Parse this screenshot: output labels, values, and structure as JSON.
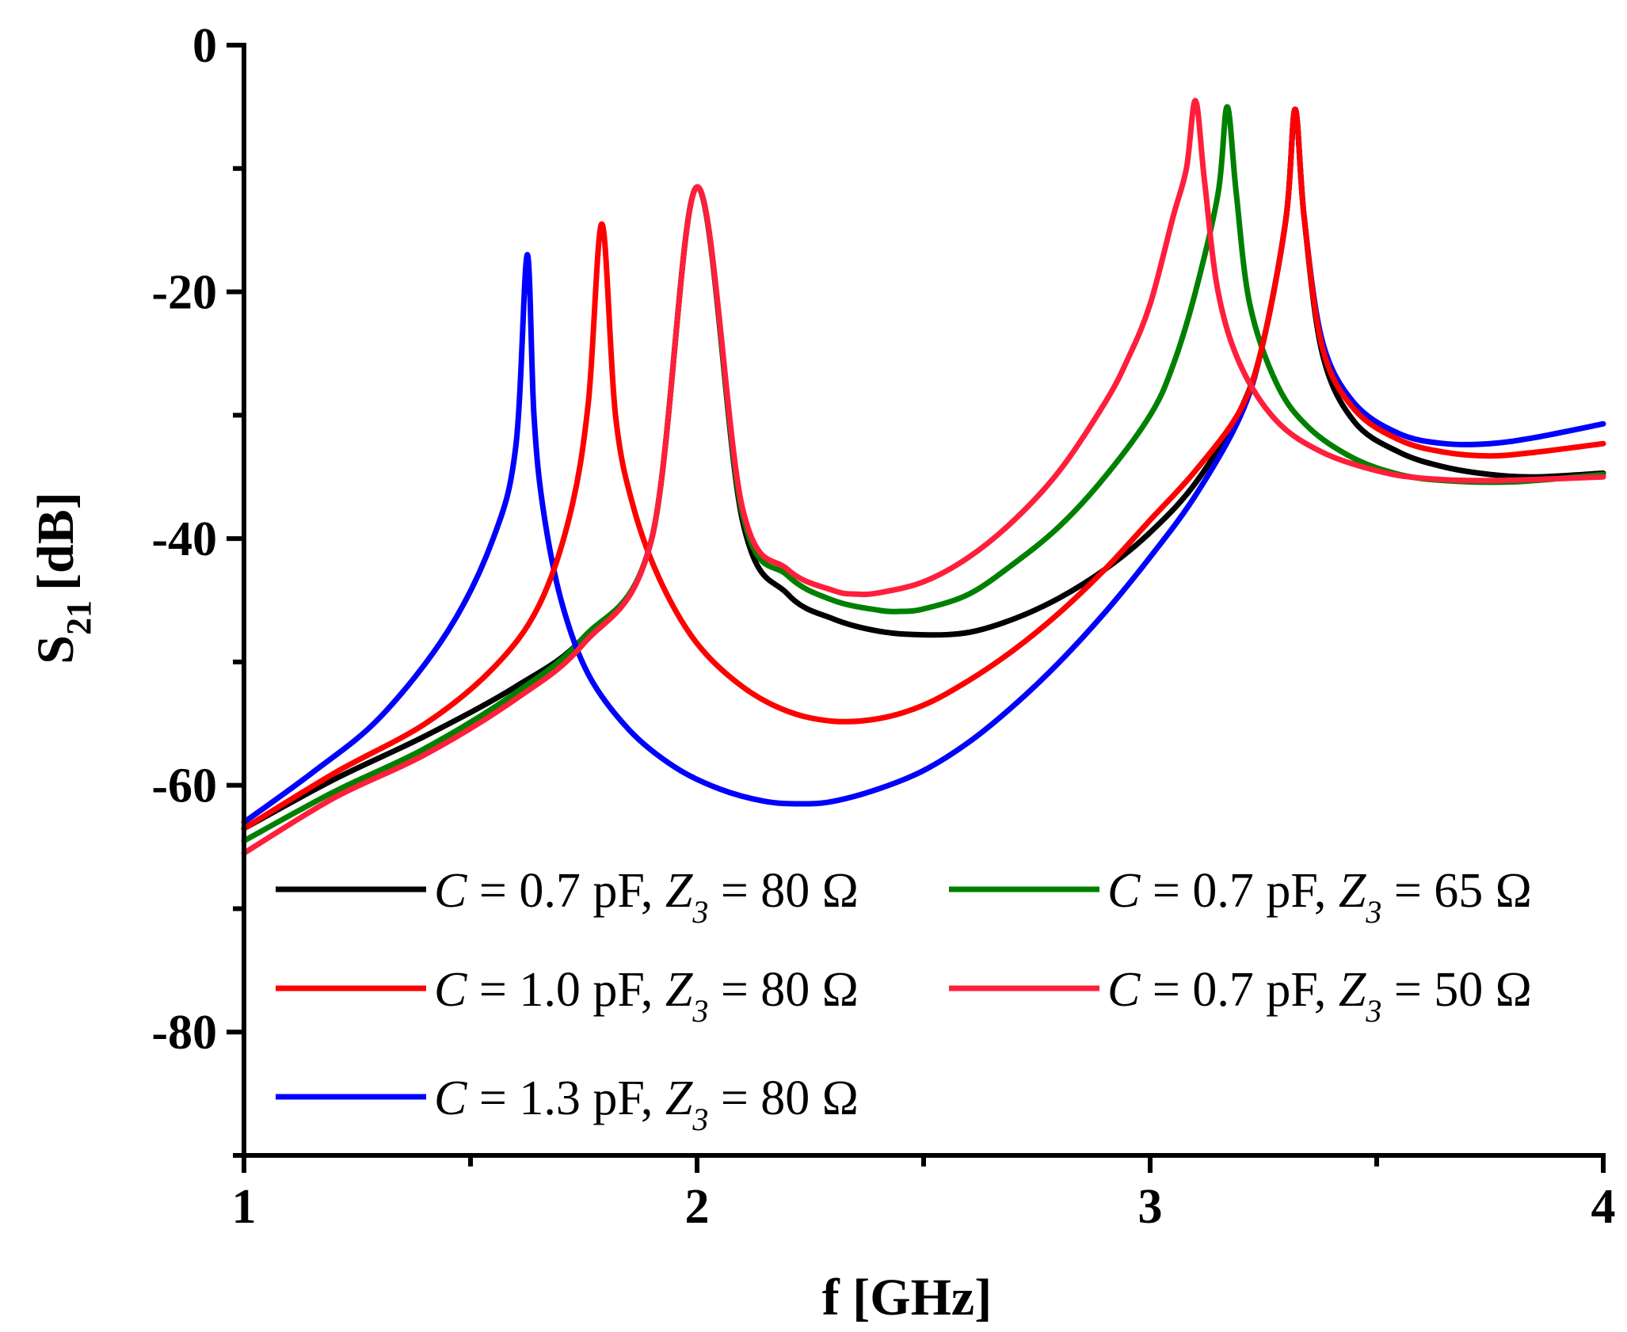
{
  "chart_data": {
    "type": "line",
    "xlabel": "f [GHz]",
    "ylabel_main": "S",
    "ylabel_sub": "21",
    "ylabel_unit": "[dB]",
    "xlim": [
      1,
      4
    ],
    "ylim": [
      -90,
      0
    ],
    "x_ticks": [
      1,
      2,
      3,
      4
    ],
    "x_tick_labels": [
      "1",
      "2",
      "3",
      "4"
    ],
    "y_ticks": [
      0,
      -20,
      -40,
      -60,
      -80
    ],
    "y_tick_labels": [
      "0",
      "-20",
      "-40",
      "-60",
      "-80"
    ],
    "legend_position": "bottom-left",
    "series": [
      {
        "name": "C = 0.7 pF, Z3 = 80 Ω",
        "label_c": "C",
        "label_mid": " = 0.7 pF, ",
        "label_z": "Z",
        "label_sub": "3",
        "label_end": " = 80 Ω",
        "color": "#000000",
        "x": [
          1.0,
          1.2,
          1.4,
          1.6,
          1.75,
          1.9,
          2.0,
          2.1,
          2.2,
          2.3,
          2.4,
          2.5,
          2.6,
          2.7,
          2.8,
          2.9,
          3.0,
          3.1,
          3.2,
          3.25,
          3.3,
          3.32,
          3.34,
          3.38,
          3.45,
          3.55,
          3.65,
          3.75,
          3.85,
          4.0
        ],
        "y": [
          -63.5,
          -59.5,
          -56.0,
          -52.0,
          -48.0,
          -40.0,
          -11.5,
          -38.5,
          -44.5,
          -46.5,
          -47.5,
          -47.8,
          -47.6,
          -46.5,
          -44.8,
          -42.5,
          -39.5,
          -35.5,
          -29.5,
          -24.0,
          -14.0,
          -5.2,
          -14.0,
          -25.0,
          -30.5,
          -33.0,
          -34.2,
          -34.8,
          -35.0,
          -34.7
        ]
      },
      {
        "name": "C = 1.0 pF, Z3 = 80 Ω",
        "label_c": "C",
        "label_mid": " = 1.0 pF, ",
        "label_z": "Z",
        "label_sub": "3",
        "label_end": " = 80 Ω",
        "color": "#ff0000",
        "x": [
          1.0,
          1.2,
          1.4,
          1.55,
          1.65,
          1.72,
          1.76,
          1.79,
          1.82,
          1.86,
          1.92,
          2.0,
          2.1,
          2.2,
          2.3,
          2.4,
          2.5,
          2.6,
          2.7,
          2.8,
          2.9,
          3.0,
          3.1,
          3.2,
          3.25,
          3.3,
          3.32,
          3.34,
          3.38,
          3.45,
          3.55,
          3.65,
          3.75,
          3.85,
          4.0
        ],
        "y": [
          -63.5,
          -59.0,
          -55.0,
          -50.5,
          -45.5,
          -38.0,
          -29.0,
          -14.5,
          -30.0,
          -37.5,
          -43.5,
          -48.5,
          -52.0,
          -54.0,
          -54.8,
          -54.6,
          -53.5,
          -51.5,
          -49.0,
          -46.0,
          -42.5,
          -38.5,
          -34.5,
          -29.5,
          -24.0,
          -14.0,
          -5.2,
          -14.0,
          -24.5,
          -29.5,
          -32.0,
          -33.0,
          -33.3,
          -33.0,
          -32.3
        ]
      },
      {
        "name": "C = 1.3 pF, Z3 = 80 Ω",
        "label_c": "C",
        "label_mid": " = 1.3 pF, ",
        "label_z": "Z",
        "label_sub": "3",
        "label_end": " = 80 Ω",
        "color": "#0000ff",
        "x": [
          1.0,
          1.15,
          1.3,
          1.45,
          1.55,
          1.6,
          1.625,
          1.64,
          1.66,
          1.7,
          1.76,
          1.85,
          1.95,
          2.05,
          2.15,
          2.23,
          2.3,
          2.4,
          2.5,
          2.6,
          2.7,
          2.8,
          2.9,
          3.0,
          3.1,
          3.2,
          3.25,
          3.3,
          3.32,
          3.34,
          3.38,
          3.45,
          3.55,
          3.65,
          3.75,
          3.85,
          4.0
        ],
        "y": [
          -63.0,
          -59.0,
          -54.5,
          -47.5,
          -40.0,
          -32.5,
          -17.0,
          -30.0,
          -37.5,
          -45.0,
          -51.0,
          -55.5,
          -58.5,
          -60.3,
          -61.3,
          -61.5,
          -61.3,
          -60.3,
          -58.8,
          -56.5,
          -53.5,
          -50.0,
          -46.0,
          -41.5,
          -36.5,
          -30.0,
          -24.0,
          -14.0,
          -5.2,
          -14.0,
          -24.0,
          -29.0,
          -31.5,
          -32.3,
          -32.3,
          -31.8,
          -30.7
        ]
      },
      {
        "name": "C = 0.7 pF, Z3 = 65 Ω",
        "label_c": "C",
        "label_mid": " = 0.7 pF, ",
        "label_z": "Z",
        "label_sub": "3",
        "label_end": " = 65 Ω",
        "color": "#008000",
        "x": [
          1.0,
          1.2,
          1.4,
          1.6,
          1.75,
          1.9,
          2.0,
          2.1,
          2.2,
          2.3,
          2.4,
          2.45,
          2.5,
          2.6,
          2.7,
          2.8,
          2.9,
          3.0,
          3.05,
          3.1,
          3.15,
          3.17,
          3.19,
          3.22,
          3.28,
          3.35,
          3.45,
          3.55,
          3.65,
          3.8,
          4.0
        ],
        "y": [
          -64.5,
          -60.5,
          -57.0,
          -52.5,
          -48.0,
          -40.0,
          -11.5,
          -38.0,
          -43.0,
          -45.0,
          -45.8,
          -45.9,
          -45.7,
          -44.5,
          -42.0,
          -39.0,
          -35.0,
          -30.0,
          -26.0,
          -20.0,
          -12.0,
          -5.0,
          -12.0,
          -21.0,
          -27.5,
          -31.0,
          -33.5,
          -34.8,
          -35.3,
          -35.4,
          -34.8
        ]
      },
      {
        "name": "C = 0.7 pF, Z3 = 50 Ω",
        "label_c": "C",
        "label_mid": " = 0.7 pF, ",
        "label_z": "Z",
        "label_sub": "3",
        "label_end": " = 50 Ω",
        "color": "#ff1f3c",
        "x": [
          1.0,
          1.2,
          1.4,
          1.6,
          1.75,
          1.9,
          2.0,
          2.1,
          2.2,
          2.3,
          2.35,
          2.4,
          2.5,
          2.6,
          2.7,
          2.8,
          2.9,
          2.95,
          3.0,
          3.05,
          3.08,
          3.1,
          3.12,
          3.15,
          3.2,
          3.28,
          3.38,
          3.5,
          3.6,
          3.75,
          4.0
        ],
        "y": [
          -65.5,
          -61.0,
          -57.5,
          -53.0,
          -48.5,
          -40.0,
          -11.5,
          -37.5,
          -42.5,
          -44.2,
          -44.5,
          -44.4,
          -43.5,
          -41.5,
          -38.5,
          -34.5,
          -29.0,
          -25.5,
          -21.0,
          -14.0,
          -10.0,
          -4.5,
          -11.0,
          -20.0,
          -26.0,
          -30.5,
          -33.0,
          -34.5,
          -35.1,
          -35.3,
          -35.0
        ]
      }
    ]
  }
}
